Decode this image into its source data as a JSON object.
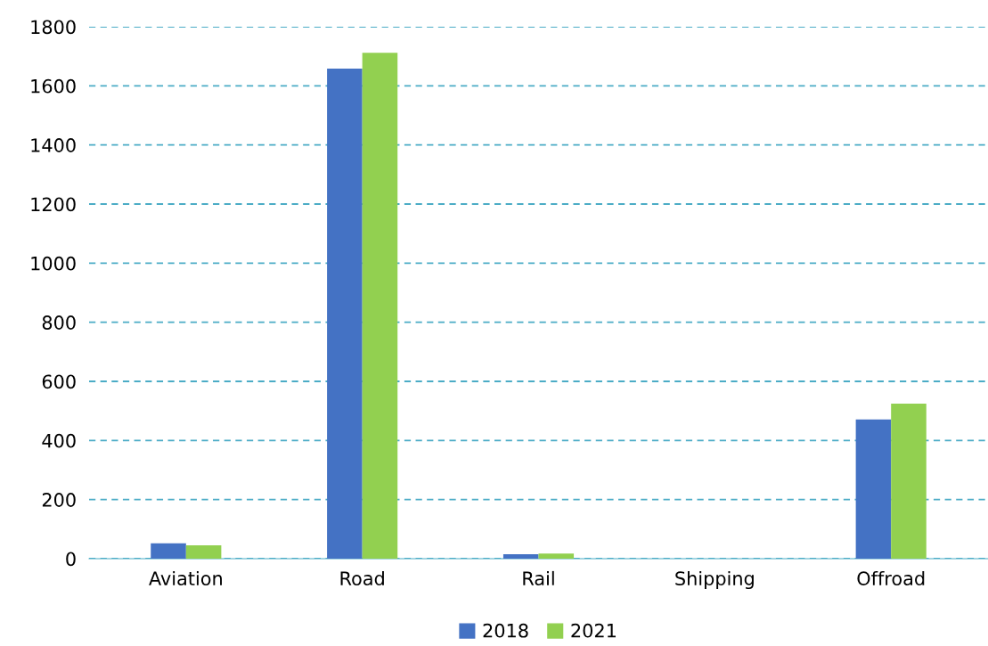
{
  "chart_data": {
    "type": "bar",
    "categories": [
      "Aviation",
      "Road",
      "Rail",
      "Shipping",
      "Offroad"
    ],
    "series": [
      {
        "name": "2018",
        "color": "#4472c4",
        "values": [
          52,
          1658,
          15,
          null,
          471
        ]
      },
      {
        "name": "2021",
        "color": "#92d050",
        "values": [
          45,
          1712,
          17,
          null,
          525
        ]
      }
    ],
    "ylim": [
      0,
      1800
    ],
    "yticks": [
      0,
      200,
      400,
      600,
      800,
      1000,
      1200,
      1400,
      1600,
      1800
    ],
    "grid": "y",
    "legend": "bottom"
  }
}
